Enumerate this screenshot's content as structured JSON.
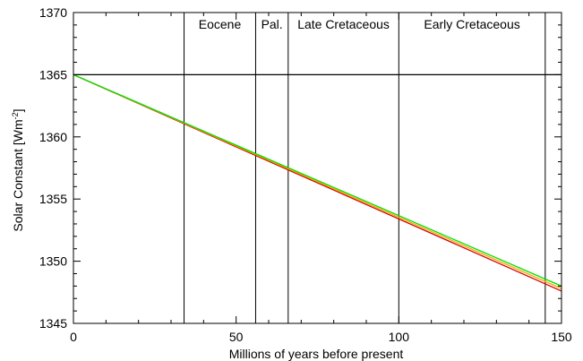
{
  "chart_data": {
    "type": "line",
    "xlabel": "Millions of years before present",
    "ylabel": "Solar Constant [Wm",
    "ylabel_sup": "-2",
    "ylabel_close": "]",
    "xlim": [
      0,
      150
    ],
    "ylim": [
      1345,
      1370
    ],
    "xticks": [
      0,
      50,
      100,
      150
    ],
    "xtick_labels": [
      "0",
      "50",
      "100",
      "150"
    ],
    "yticks": [
      1345,
      1350,
      1355,
      1360,
      1365,
      1370
    ],
    "ytick_labels": [
      "1345",
      "1350",
      "1355",
      "1360",
      "1365",
      "1370"
    ],
    "period_boundaries": [
      34,
      56,
      66,
      100,
      145
    ],
    "periods": [
      {
        "label": "Eocene",
        "start": 34,
        "end": 56
      },
      {
        "label": "Pal.",
        "start": 56,
        "end": 66
      },
      {
        "label": "Late Cretaceous",
        "start": 66,
        "end": 100
      },
      {
        "label": "Early Cretaceous",
        "start": 100,
        "end": 145
      }
    ],
    "reference_line": {
      "y": 1365,
      "color": "#000000"
    },
    "series": [
      {
        "color": "#d10000",
        "x": [
          0,
          150
        ],
        "y": [
          1365.0,
          1347.6
        ]
      },
      {
        "color": "#ffa500",
        "x": [
          0,
          150
        ],
        "y": [
          1365.0,
          1347.8
        ]
      },
      {
        "color": "#00e000",
        "x": [
          0,
          150
        ],
        "y": [
          1365.0,
          1348.0
        ]
      }
    ]
  }
}
